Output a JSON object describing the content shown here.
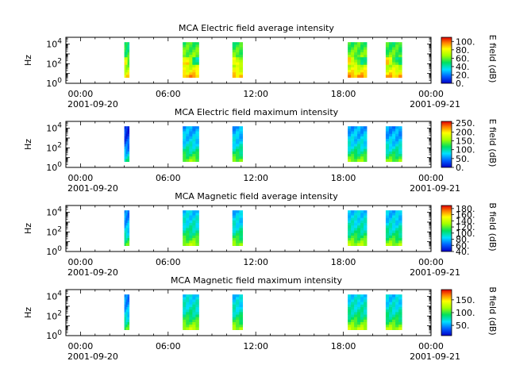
{
  "chart_data": [
    {
      "type": "heatmap",
      "title": "MCA  Electric field average intensity",
      "ylabel": "Hz",
      "colorbar_label": "E field (dB)",
      "colorbar_ticks": [
        "0.",
        "20.",
        "40.",
        "60.",
        "80.",
        "100."
      ],
      "colorbar_range": [
        0,
        110
      ],
      "ylim_exp": [
        0,
        4.7
      ],
      "yticks": [
        {
          "base": "10",
          "exp": "0",
          "value": 0
        },
        {
          "base": "10",
          "exp": "2",
          "value": 2
        },
        {
          "base": "10",
          "exp": "4",
          "value": 4
        }
      ],
      "segments": [
        {
          "start_h": 3.0,
          "end_h": 3.33,
          "freq_exp": [
            0.6,
            4.2
          ],
          "level": 0.55
        },
        {
          "start_h": 7.0,
          "end_h": 8.1,
          "freq_exp": [
            0.6,
            4.2
          ],
          "level": 0.62
        },
        {
          "start_h": 10.4,
          "end_h": 11.1,
          "freq_exp": [
            0.6,
            4.2
          ],
          "level": 0.6
        },
        {
          "start_h": 18.3,
          "end_h": 19.6,
          "freq_exp": [
            0.6,
            4.2
          ],
          "level": 0.62
        },
        {
          "start_h": 20.9,
          "end_h": 22.0,
          "freq_exp": [
            0.6,
            4.2
          ],
          "level": 0.6
        }
      ]
    },
    {
      "type": "heatmap",
      "title": "MCA  Electric field maximum intensity",
      "ylabel": "Hz",
      "colorbar_label": "E field (dB)",
      "colorbar_ticks": [
        "0.",
        "50.",
        "100.",
        "150.",
        "200.",
        "250."
      ],
      "colorbar_range": [
        0,
        260
      ],
      "ylim_exp": [
        0,
        4.7
      ],
      "yticks": [
        {
          "base": "10",
          "exp": "0",
          "value": 0
        },
        {
          "base": "10",
          "exp": "2",
          "value": 2
        },
        {
          "base": "10",
          "exp": "4",
          "value": 4
        }
      ],
      "segments": [
        {
          "start_h": 3.0,
          "end_h": 3.33,
          "freq_exp": [
            0.6,
            4.2
          ],
          "level": 0.18
        },
        {
          "start_h": 7.0,
          "end_h": 8.1,
          "freq_exp": [
            0.6,
            4.2
          ],
          "level": 0.35
        },
        {
          "start_h": 10.4,
          "end_h": 11.1,
          "freq_exp": [
            0.6,
            4.2
          ],
          "level": 0.35
        },
        {
          "start_h": 18.3,
          "end_h": 19.6,
          "freq_exp": [
            0.6,
            4.2
          ],
          "level": 0.35
        },
        {
          "start_h": 20.9,
          "end_h": 22.0,
          "freq_exp": [
            0.6,
            4.2
          ],
          "level": 0.33
        }
      ]
    },
    {
      "type": "heatmap",
      "title": "MCA  Magnetic field average intensity",
      "ylabel": "Hz",
      "colorbar_label": "B field (dB)",
      "colorbar_ticks": [
        "40.",
        "60.",
        "80.",
        "100.",
        "120.",
        "140.",
        "160.",
        "180."
      ],
      "colorbar_range": [
        40,
        190
      ],
      "ylim_exp": [
        0,
        4.7
      ],
      "yticks": [
        {
          "base": "10",
          "exp": "0",
          "value": 0
        },
        {
          "base": "10",
          "exp": "2",
          "value": 2
        },
        {
          "base": "10",
          "exp": "4",
          "value": 4
        }
      ],
      "segments": [
        {
          "start_h": 3.0,
          "end_h": 3.33,
          "freq_exp": [
            0.6,
            4.2
          ],
          "level": 0.3
        },
        {
          "start_h": 7.0,
          "end_h": 8.1,
          "freq_exp": [
            0.6,
            4.2
          ],
          "level": 0.4
        },
        {
          "start_h": 10.4,
          "end_h": 11.1,
          "freq_exp": [
            0.6,
            4.2
          ],
          "level": 0.38
        },
        {
          "start_h": 18.3,
          "end_h": 19.6,
          "freq_exp": [
            0.6,
            4.2
          ],
          "level": 0.4
        },
        {
          "start_h": 20.9,
          "end_h": 22.0,
          "freq_exp": [
            0.6,
            4.2
          ],
          "level": 0.38
        }
      ]
    },
    {
      "type": "heatmap",
      "title": "MCA  Magnetic field maximum intensity",
      "ylabel": "Hz",
      "colorbar_label": "B field (dB)",
      "colorbar_ticks": [
        "50.",
        "100.",
        "150."
      ],
      "colorbar_range": [
        10,
        190
      ],
      "ylim_exp": [
        0,
        4.7
      ],
      "yticks": [
        {
          "base": "10",
          "exp": "0",
          "value": 0
        },
        {
          "base": "10",
          "exp": "2",
          "value": 2
        },
        {
          "base": "10",
          "exp": "4",
          "value": 4
        }
      ],
      "segments": [
        {
          "start_h": 3.0,
          "end_h": 3.33,
          "freq_exp": [
            0.6,
            4.2
          ],
          "level": 0.3
        },
        {
          "start_h": 7.0,
          "end_h": 8.1,
          "freq_exp": [
            0.6,
            4.2
          ],
          "level": 0.42
        },
        {
          "start_h": 10.4,
          "end_h": 11.1,
          "freq_exp": [
            0.6,
            4.2
          ],
          "level": 0.4
        },
        {
          "start_h": 18.3,
          "end_h": 19.6,
          "freq_exp": [
            0.6,
            4.2
          ],
          "level": 0.42
        },
        {
          "start_h": 20.9,
          "end_h": 22.0,
          "freq_exp": [
            0.6,
            4.2
          ],
          "level": 0.4
        }
      ]
    }
  ],
  "x_axis": {
    "range_h": [
      -1,
      24
    ],
    "major_ticks": [
      {
        "hour": 0,
        "label": "00:00"
      },
      {
        "hour": 6,
        "label": "06:00"
      },
      {
        "hour": 12,
        "label": "12:00"
      },
      {
        "hour": 18,
        "label": "18:00"
      },
      {
        "hour": 24,
        "label": "00:00"
      }
    ],
    "start_date": "2001-09-20",
    "end_date": "2001-09-21"
  }
}
